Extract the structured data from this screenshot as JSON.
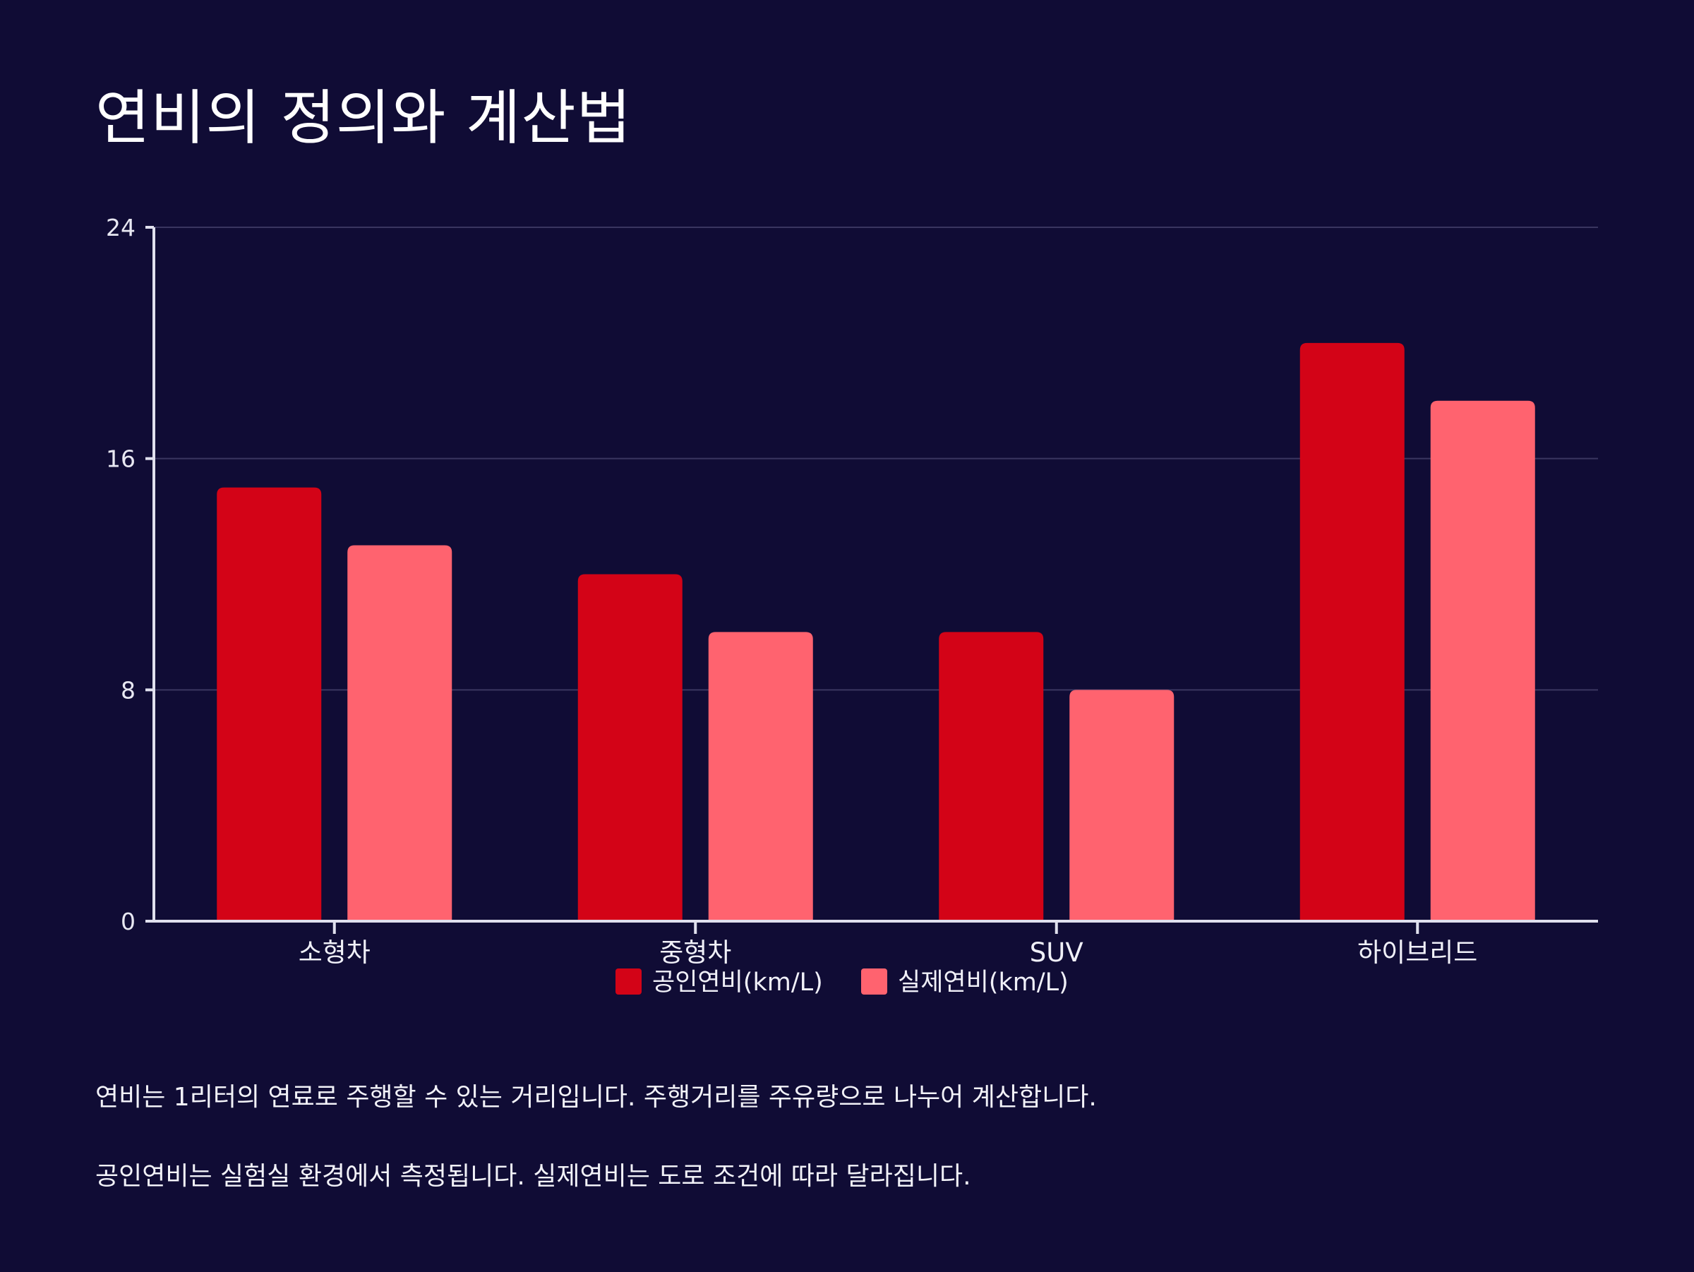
{
  "title": "연비의 정의와 계산법",
  "colors": {
    "background": "#100c35",
    "series1": "#d30317",
    "series2": "#ff636f",
    "grid": "#3a3660",
    "axis": "#e0e0ee"
  },
  "chart_data": {
    "type": "bar",
    "categories": [
      "소형차",
      "중형차",
      "SUV",
      "하이브리드"
    ],
    "series": [
      {
        "name": "공인연비(km/L)",
        "values": [
          15,
          12,
          10,
          20
        ]
      },
      {
        "name": "실제연비(km/L)",
        "values": [
          13,
          10,
          8,
          18
        ]
      }
    ],
    "ylim": [
      0,
      24
    ],
    "yticks": [
      0,
      8,
      16,
      24
    ],
    "grid": true,
    "legend": "bottom-center",
    "xlabel": "",
    "ylabel": ""
  },
  "notes": [
    "연비는 1리터의 연료로 주행할 수 있는 거리입니다. 주행거리를 주유량으로 나누어 계산합니다.",
    "공인연비는 실험실 환경에서 측정됩니다. 실제연비는 도로 조건에 따라 달라집니다."
  ]
}
